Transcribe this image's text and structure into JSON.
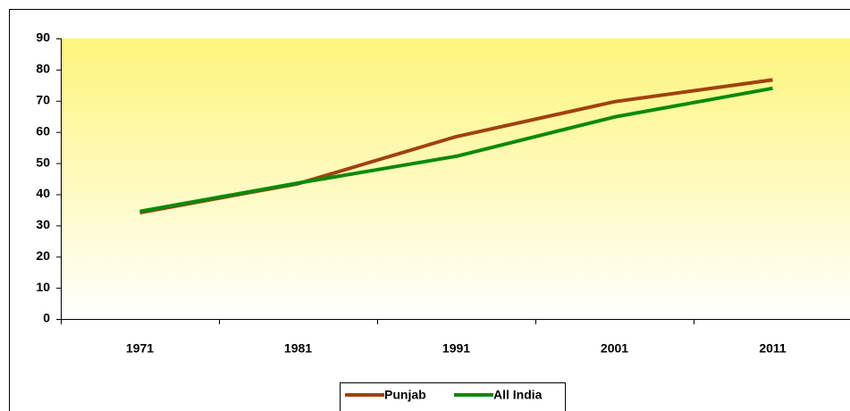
{
  "chart_data": {
    "type": "line",
    "categories": [
      "1971",
      "1981",
      "1991",
      "2001",
      "2011"
    ],
    "series": [
      {
        "name": "Punjab",
        "color": "#a0420f",
        "values": [
          34.1,
          43.4,
          58.5,
          69.7,
          76.7
        ]
      },
      {
        "name": "All India",
        "color": "#0a8a0a",
        "values": [
          34.5,
          43.6,
          52.2,
          64.8,
          74.0
        ]
      }
    ],
    "ylim": [
      0,
      90
    ],
    "yticks": [
      0,
      10,
      20,
      30,
      40,
      50,
      60,
      70,
      80,
      90
    ]
  }
}
